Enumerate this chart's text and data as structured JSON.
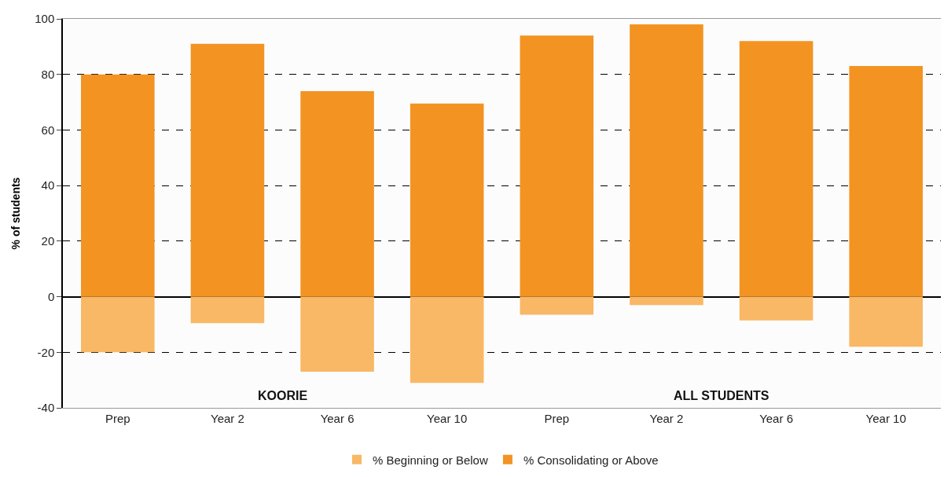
{
  "chart_data": {
    "type": "bar",
    "stacked": true,
    "categories": [
      "Prep",
      "Year 2",
      "Year 6",
      "Year 10",
      "Prep",
      "Year 2",
      "Year 6",
      "Year 10"
    ],
    "ylabel": "% of students",
    "series": [
      {
        "name": "% Beginning or Below",
        "color": "#f8b865",
        "values": [
          -20,
          -9.5,
          -27,
          -31,
          -6.5,
          -3,
          -8.5,
          -18
        ]
      },
      {
        "name": "% Consolidating or Above",
        "color": "#f39322",
        "values": [
          80,
          91,
          74,
          69.5,
          94,
          98,
          92,
          83
        ]
      }
    ],
    "ylim": [
      -40,
      100
    ],
    "yticks": [
      -40,
      -20,
      0,
      20,
      40,
      60,
      80,
      100
    ],
    "grid": "y",
    "legend": "bottom",
    "annotations": [
      "KOORIE",
      "ALL STUDENTS"
    ]
  }
}
